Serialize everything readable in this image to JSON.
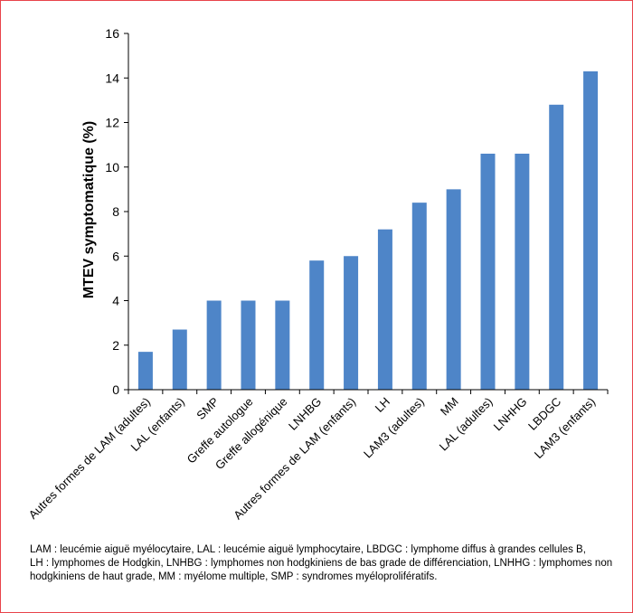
{
  "chart_data": {
    "type": "bar",
    "ylabel": "MTEV symptomatique (%)",
    "xlabel": "",
    "ylim": [
      0,
      16
    ],
    "yticks": [
      0,
      2,
      4,
      6,
      8,
      10,
      12,
      14,
      16
    ],
    "grid": false,
    "color": "#4e85c8",
    "categories": [
      "Autres formes de LAM (adultes)",
      "LAL (enfants)",
      "SMP",
      "Greffe autologue",
      "Greffe allogénique",
      "LNHBG",
      "Autres formes de LAM (enfants)",
      "LH",
      "LAM3 (adultes)",
      "MM",
      "LAL (adultes)",
      "LNHHG",
      "LBDGC",
      "LAM3 (enfants)"
    ],
    "values": [
      1.7,
      2.7,
      4.0,
      4.0,
      4.0,
      5.8,
      6.0,
      7.2,
      8.4,
      9.0,
      10.6,
      10.6,
      12.8,
      14.3
    ]
  },
  "footnote": {
    "lines": [
      "LAM : leucémie aiguë myélocytaire, LAL : leucémie aiguë lymphocytaire, LBDGC : lymphome diffus à grandes cellules B,",
      "LH : lymphomes de Hodgkin, LNHBG : lymphomes non hodgkiniens de bas grade de différenciation, LNHHG : lymphomes non",
      "hodgkiniens de haut grade, MM : myélome multiple, SMP : syndromes myéloprolifératifs."
    ]
  }
}
